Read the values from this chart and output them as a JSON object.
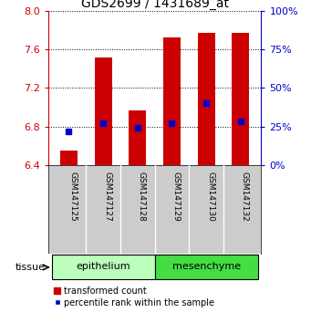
{
  "title": "GDS2699 / 1431689_at",
  "samples": [
    "GSM147125",
    "GSM147127",
    "GSM147128",
    "GSM147129",
    "GSM147130",
    "GSM147132"
  ],
  "bar_values": [
    6.55,
    7.52,
    6.97,
    7.73,
    7.78,
    7.78
  ],
  "bar_bottom": 6.4,
  "percentile_values": [
    22,
    27,
    24,
    27,
    40,
    28
  ],
  "groups": [
    {
      "label": "epithelium",
      "indices": [
        0,
        1,
        2
      ],
      "color": "#bbffbb"
    },
    {
      "label": "mesenchyme",
      "indices": [
        3,
        4,
        5
      ],
      "color": "#44dd44"
    }
  ],
  "ylim_left": [
    6.4,
    8.0
  ],
  "ylim_right": [
    0,
    100
  ],
  "yticks_left": [
    6.4,
    6.8,
    7.2,
    7.6,
    8.0
  ],
  "yticks_right": [
    0,
    25,
    50,
    75,
    100
  ],
  "bar_color": "#cc0000",
  "dot_color": "#0000cc",
  "bar_width": 0.5,
  "left_tick_color": "#cc0000",
  "right_tick_color": "#0000cc",
  "title_fontsize": 10,
  "tick_fontsize": 8,
  "legend_bar_label": "transformed count",
  "legend_dot_label": "percentile rank within the sample",
  "tissue_label": "tissue",
  "background_color": "#ffffff",
  "xticklabel_bg": "#cccccc",
  "group_label_fontsize": 8,
  "sample_label_fontsize": 6.5
}
